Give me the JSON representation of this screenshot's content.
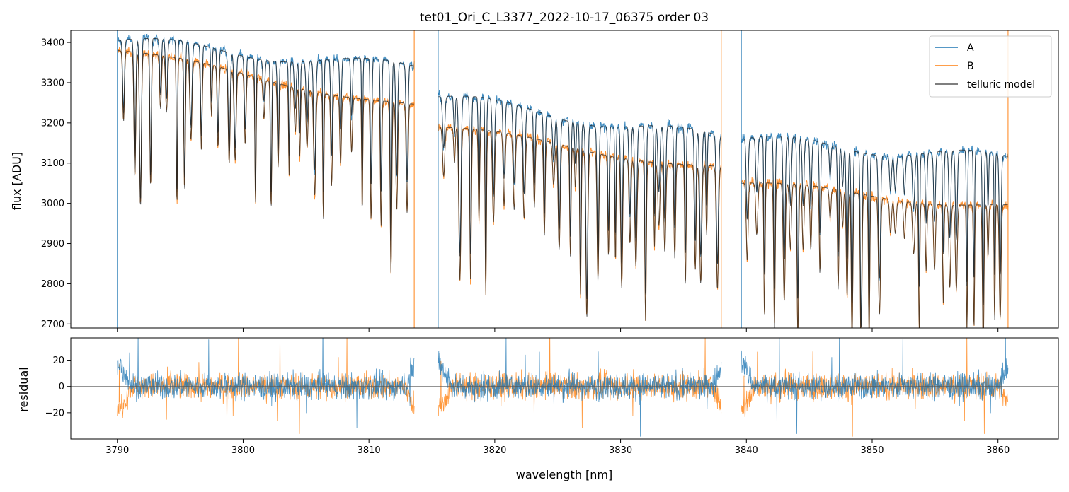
{
  "chart_data": [
    {
      "type": "line",
      "title": "tet01_Ori_C_L3377_2022-10-17_06375  order 03",
      "xlabel": "",
      "ylabel": "flux [ADU]",
      "xlim": [
        3786.3,
        3864.8
      ],
      "ylim": [
        2690,
        3430
      ],
      "yticks": [
        2700,
        2800,
        2900,
        3000,
        3100,
        3200,
        3300,
        3400
      ],
      "xticks": [
        3790,
        3800,
        3810,
        3820,
        3830,
        3840,
        3850,
        3860
      ],
      "segments": [
        {
          "start": 3790.0,
          "end": 3813.6,
          "A_start": 3405,
          "A_end": 3335,
          "B_start": 3380,
          "B_end": 3240,
          "A_color": "#1f77b4"
        },
        {
          "start": 3815.5,
          "end": 3838.0,
          "A_start": 3265,
          "A_end": 3160,
          "B_start": 3190,
          "B_end": 3085
        },
        {
          "start": 3839.6,
          "end": 3860.8,
          "A_start": 3160,
          "A_end": 3110,
          "B_start": 3050,
          "B_end": 2990
        }
      ],
      "series": [
        {
          "name": "A",
          "color": "#1f77b4"
        },
        {
          "name": "B",
          "color": "#ff7f0e"
        },
        {
          "name": "telluric model",
          "color": "#555555"
        }
      ],
      "legend": {
        "position": "top-right",
        "entries": [
          "A",
          "B",
          "telluric model"
        ]
      }
    },
    {
      "type": "line",
      "title": "",
      "xlabel": "wavelength [nm]",
      "ylabel": "residual",
      "xlim": [
        3786.3,
        3864.8
      ],
      "ylim": [
        -40,
        37
      ],
      "yticks": [
        -20,
        0,
        20
      ],
      "yticklabels": [
        "−20",
        "0",
        "20"
      ],
      "xticks": [
        3790,
        3800,
        3810,
        3820,
        3830,
        3840,
        3850,
        3860
      ],
      "xticklabels": [
        "3790",
        "3800",
        "3810",
        "3820",
        "3830",
        "3840",
        "3850",
        "3860"
      ],
      "zero_line": 0,
      "series": [
        {
          "name": "A",
          "color": "#1f77b4"
        },
        {
          "name": "B",
          "color": "#ff7f0e"
        }
      ]
    }
  ]
}
